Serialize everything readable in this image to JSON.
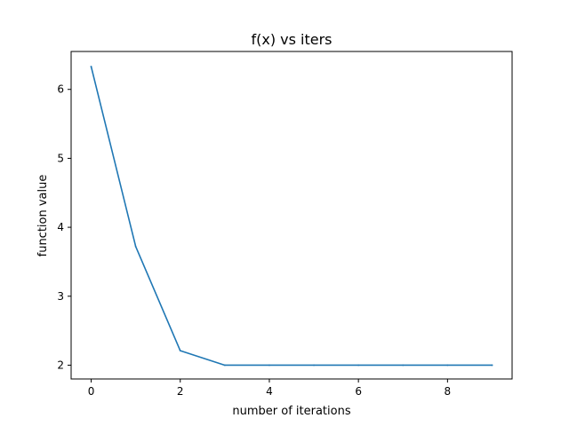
{
  "chart_data": {
    "type": "line",
    "title": "f(x) vs iters",
    "xlabel": "number of iterations",
    "ylabel": "function value",
    "x": [
      0,
      1,
      2,
      3,
      4,
      5,
      6,
      7,
      8,
      9
    ],
    "series": [
      {
        "values": [
          6.33,
          3.72,
          2.21,
          2.0,
          2.0,
          2.0,
          2.0,
          2.0,
          2.0,
          2.0
        ],
        "color": "#1f77b4"
      }
    ],
    "xlim": [
      -0.45,
      9.45
    ],
    "ylim": [
      1.8,
      6.55
    ],
    "xticks": [
      0,
      2,
      4,
      6,
      8
    ],
    "yticks": [
      2,
      3,
      4,
      5,
      6
    ],
    "xtick_labels": [
      "0",
      "2",
      "4",
      "6",
      "8"
    ],
    "ytick_labels": [
      "2",
      "3",
      "4",
      "5",
      "6"
    ],
    "grid": false,
    "legend": "none"
  }
}
